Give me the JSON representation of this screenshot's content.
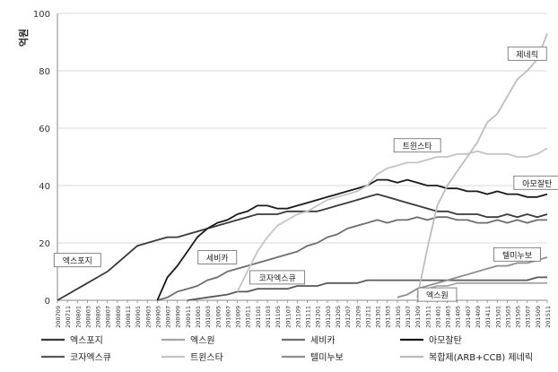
{
  "chart_data": {
    "type": "line",
    "title": "",
    "xlabel": "",
    "ylabel": "억원",
    "ylim": [
      0,
      100
    ],
    "yticks": [
      0,
      20,
      40,
      60,
      80,
      100
    ],
    "grid": "horizontal",
    "legend_position": "bottom",
    "x_ticks": [
      "200709",
      "200711",
      "200801",
      "200803",
      "200805",
      "200807",
      "200809",
      "200811",
      "200901",
      "200903",
      "200905",
      "200907",
      "200909",
      "200911",
      "201001",
      "201003",
      "201005",
      "201007",
      "201009",
      "201011",
      "201101",
      "201103",
      "201105",
      "201107",
      "201109",
      "201111",
      "201201",
      "201203",
      "201205",
      "201207",
      "201209",
      "201211",
      "201301",
      "201303",
      "201305",
      "201307",
      "201309",
      "201311",
      "201401",
      "201403",
      "201405",
      "201407",
      "201409",
      "201411",
      "201501",
      "201503",
      "201505",
      "201507",
      "201509",
      "201511"
    ],
    "series": [
      {
        "name": "엑스포지",
        "color": "#3a3a3a",
        "x": [
          "200709",
          "200711",
          "200801",
          "200803",
          "200805",
          "200807",
          "200809",
          "200811",
          "200901",
          "200903",
          "200905",
          "200907",
          "200909",
          "200911",
          "201001",
          "201003",
          "201005",
          "201007",
          "201009",
          "201011",
          "201101",
          "201103",
          "201105",
          "201107",
          "201109",
          "201111",
          "201201",
          "201203",
          "201205",
          "201207",
          "201209",
          "201211",
          "201301",
          "201303",
          "201305",
          "201307",
          "201309",
          "201311",
          "201401",
          "201403",
          "201405",
          "201407",
          "201409",
          "201411",
          "201501",
          "201503",
          "201505",
          "201507",
          "201509",
          "201511"
        ],
        "values": [
          0,
          2,
          4,
          6,
          8,
          10,
          13,
          16,
          19,
          20,
          21,
          22,
          22,
          23,
          24,
          25,
          26,
          27,
          28,
          29,
          30,
          30,
          30,
          31,
          31,
          31,
          31,
          32,
          33,
          34,
          35,
          36,
          37,
          36,
          35,
          34,
          33,
          32,
          31,
          31,
          30,
          30,
          30,
          29,
          29,
          30,
          29,
          30,
          29,
          30
        ]
      },
      {
        "name": "엑스원",
        "color": "#a6a6a6",
        "x": [
          "201309",
          "201311",
          "201401",
          "201403",
          "201405",
          "201407",
          "201409",
          "201411",
          "201501",
          "201503",
          "201505",
          "201507",
          "201509",
          "201511"
        ],
        "values": [
          3,
          4,
          5,
          5,
          6,
          6,
          6,
          6,
          6,
          6,
          6,
          6,
          6,
          6
        ]
      },
      {
        "name": "세비카",
        "color": "#6e6e6e",
        "x": [
          "200905",
          "200907",
          "200909",
          "200911",
          "201001",
          "201003",
          "201005",
          "201007",
          "201009",
          "201011",
          "201101",
          "201103",
          "201105",
          "201107",
          "201109",
          "201111",
          "201201",
          "201203",
          "201205",
          "201207",
          "201209",
          "201211",
          "201301",
          "201303",
          "201305",
          "201307",
          "201309",
          "201311",
          "201401",
          "201403",
          "201405",
          "201407",
          "201409",
          "201411",
          "201501",
          "201503",
          "201505",
          "201507",
          "201509",
          "201511"
        ],
        "values": [
          0,
          1,
          3,
          4,
          5,
          7,
          8,
          10,
          11,
          12,
          13,
          14,
          15,
          16,
          17,
          19,
          20,
          22,
          23,
          25,
          26,
          27,
          28,
          27,
          28,
          28,
          29,
          28,
          29,
          29,
          28,
          28,
          27,
          27,
          28,
          27,
          28,
          27,
          28,
          28
        ]
      },
      {
        "name": "아모잘탄",
        "color": "#1a1a1a",
        "x": [
          "200905",
          "200907",
          "200909",
          "200911",
          "201001",
          "201003",
          "201005",
          "201007",
          "201009",
          "201011",
          "201101",
          "201103",
          "201105",
          "201107",
          "201109",
          "201111",
          "201201",
          "201203",
          "201205",
          "201207",
          "201209",
          "201211",
          "201301",
          "201303",
          "201305",
          "201307",
          "201309",
          "201311",
          "201401",
          "201403",
          "201405",
          "201407",
          "201409",
          "201411",
          "201501",
          "201503",
          "201505",
          "201507",
          "201509",
          "201511"
        ],
        "values": [
          0,
          8,
          12,
          17,
          22,
          25,
          27,
          28,
          30,
          31,
          33,
          33,
          32,
          32,
          33,
          34,
          35,
          36,
          37,
          38,
          39,
          40,
          42,
          42,
          41,
          42,
          41,
          40,
          40,
          39,
          39,
          38,
          38,
          37,
          38,
          37,
          37,
          36,
          36,
          37
        ]
      },
      {
        "name": "코자엑스큐",
        "color": "#5a5a5a",
        "x": [
          "200911",
          "201001",
          "201003",
          "201005",
          "201007",
          "201009",
          "201011",
          "201101",
          "201103",
          "201105",
          "201107",
          "201109",
          "201111",
          "201201",
          "201203",
          "201205",
          "201207",
          "201209",
          "201211",
          "201301",
          "201303",
          "201305",
          "201307",
          "201309",
          "201311",
          "201401",
          "201403",
          "201405",
          "201407",
          "201409",
          "201411",
          "201501",
          "201503",
          "201505",
          "201507",
          "201509",
          "201511"
        ],
        "values": [
          0,
          0.5,
          1,
          1.5,
          2,
          3,
          3,
          4,
          4,
          4,
          4,
          5,
          5,
          5,
          6,
          6,
          6,
          6,
          7,
          7,
          7,
          7,
          7,
          7,
          7,
          7,
          7,
          7,
          7,
          7,
          7,
          7,
          7,
          7,
          7,
          8,
          8
        ]
      },
      {
        "name": "트윈스타",
        "color": "#c4c4c4",
        "x": [
          "201009",
          "201011",
          "201101",
          "201103",
          "201105",
          "201107",
          "201109",
          "201111",
          "201201",
          "201203",
          "201205",
          "201207",
          "201209",
          "201211",
          "201301",
          "201303",
          "201305",
          "201307",
          "201309",
          "201311",
          "201401",
          "201403",
          "201405",
          "201407",
          "201409",
          "201411",
          "201501",
          "201503",
          "201505",
          "201507",
          "201509",
          "201511"
        ],
        "values": [
          3,
          10,
          17,
          22,
          26,
          28,
          30,
          31,
          33,
          35,
          36,
          37,
          38,
          40,
          44,
          46,
          47,
          48,
          48,
          49,
          50,
          50,
          51,
          51,
          52,
          51,
          51,
          51,
          50,
          50,
          51,
          53
        ]
      },
      {
        "name": "텔미누보",
        "color": "#8f8f8f",
        "x": [
          "201305",
          "201307",
          "201309",
          "201311",
          "201401",
          "201403",
          "201405",
          "201407",
          "201409",
          "201411",
          "201501",
          "201503",
          "201505",
          "201507",
          "201509",
          "201511"
        ],
        "values": [
          1,
          2,
          4,
          5,
          6,
          7,
          8,
          9,
          10,
          11,
          12,
          12,
          13,
          13,
          14,
          15
        ]
      },
      {
        "name": "복합제(ARB+CCB) 제네릭",
        "color": "#bdbdbd",
        "x": [
          "201309",
          "201311",
          "201401",
          "201403",
          "201405",
          "201407",
          "201409",
          "201411",
          "201501",
          "201503",
          "201505",
          "201507",
          "201509",
          "201511"
        ],
        "values": [
          1,
          18,
          33,
          40,
          45,
          50,
          55,
          62,
          65,
          71,
          77,
          80,
          84,
          93
        ]
      }
    ],
    "annotations": [
      {
        "text": "제네릭",
        "series": "복합제(ARB+CCB) 제네릭",
        "x": "201507",
        "y": 86
      },
      {
        "text": "트윈스타",
        "series": "트윈스타",
        "x": "201309",
        "y": 54
      },
      {
        "text": "아모잘탄",
        "series": "아모잘탄",
        "x": "201509",
        "y": 41
      },
      {
        "text": "세비카",
        "series": "세비카",
        "x": "201005",
        "y": 15
      },
      {
        "text": "엑스포지",
        "series": "엑스포지",
        "x": "200801",
        "y": 14
      },
      {
        "text": "코자엑스큐",
        "series": "코자엑스큐",
        "x": "201105",
        "y": 8
      },
      {
        "text": "텔미누보",
        "series": "텔미누보",
        "x": "201505",
        "y": 16
      },
      {
        "text": "엑스원",
        "series": "엑스원",
        "x": "201401",
        "y": 2
      }
    ]
  }
}
